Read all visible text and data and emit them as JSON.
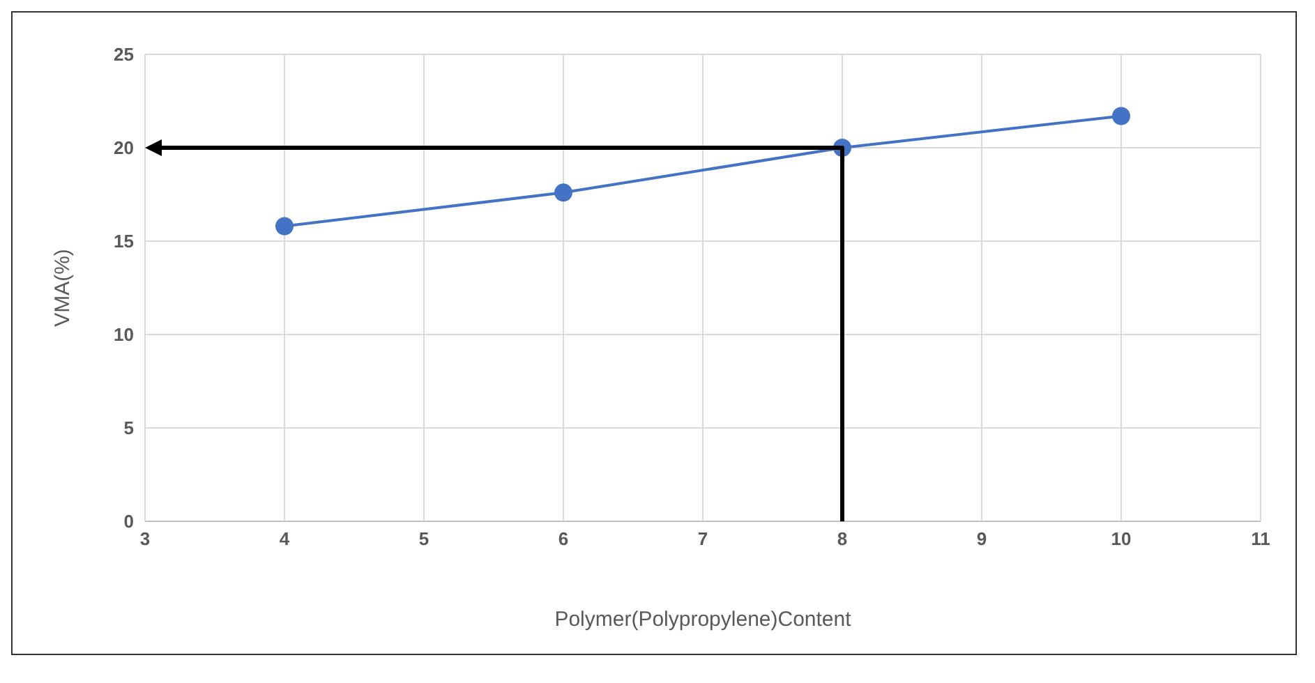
{
  "chart_data": {
    "type": "line",
    "xlabel": "Polymer(Polypropylene)Content",
    "ylabel": "VMA(%)",
    "xlim": [
      3,
      11
    ],
    "xticks": [
      3,
      4,
      5,
      6,
      7,
      8,
      9,
      10,
      11
    ],
    "ylim": [
      0,
      25
    ],
    "yticks": [
      0,
      5,
      10,
      15,
      20,
      25
    ],
    "grid": true,
    "series": [
      {
        "color": "#4472c4",
        "marker": "circle",
        "x": [
          4,
          6,
          8,
          10
        ],
        "values": [
          15.8,
          17.6,
          20,
          21.7
        ]
      }
    ]
  }
}
